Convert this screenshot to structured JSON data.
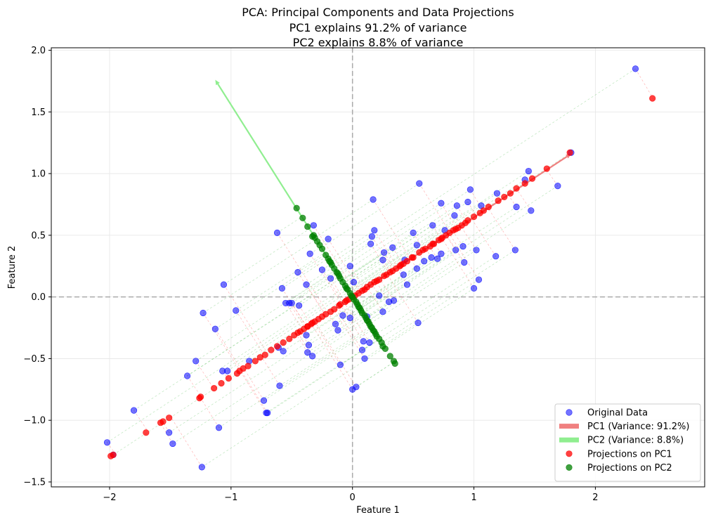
{
  "chart_data": {
    "type": "scatter",
    "title": [
      "PCA: Principal Components and Data Projections",
      "PC1 explains 91.2% of variance",
      "PC2 explains 8.8% of variance"
    ],
    "xlabel": "Feature 1",
    "ylabel": "Feature 2",
    "xlim": [
      -2.48,
      2.9
    ],
    "ylim": [
      -1.54,
      2.02
    ],
    "xticks": [
      -2,
      -1,
      0,
      1,
      2
    ],
    "yticks": [
      -1.5,
      -1.0,
      -0.5,
      0.0,
      0.5,
      1.0,
      1.5,
      2.0
    ],
    "xtick_labels": [
      "−2",
      "−1",
      "0",
      "1",
      "2"
    ],
    "ytick_labels": [
      "−1.5",
      "−1.0",
      "−0.5",
      "0.0",
      "0.5",
      "1.0",
      "1.5",
      "2.0"
    ],
    "grid": true,
    "legend_position": "lower-right",
    "pc1_direction": [
      0.84,
      0.54
    ],
    "pc2_direction": [
      -0.54,
      0.84
    ],
    "pc1_arrow": {
      "from": [
        0,
        0
      ],
      "to": [
        1.8,
        1.16
      ]
    },
    "pc2_arrow": {
      "from": [
        0,
        0
      ],
      "to": [
        -1.13,
        1.76
      ]
    },
    "series": [
      {
        "name": "Original Data",
        "color": "#0000ff",
        "x": [
          2.33,
          1.8,
          1.69,
          1.47,
          1.45,
          1.42,
          1.35,
          1.34,
          1.19,
          1.18,
          1.04,
          1.0,
          0.97,
          0.95,
          0.92,
          0.86,
          0.84,
          0.76,
          0.73,
          0.73,
          0.7,
          0.66,
          0.55,
          0.53,
          0.53,
          0.5,
          0.45,
          0.43,
          0.42,
          0.33,
          0.26,
          0.25,
          0.17,
          0.16,
          0.15,
          0.14,
          0.1,
          0.09,
          0.08,
          0.03,
          -0.02,
          0.0,
          -0.08,
          -0.1,
          -0.14,
          -0.25,
          -0.33,
          -0.35,
          -0.36,
          -0.37,
          -0.38,
          -0.44,
          -0.5,
          -0.52,
          -0.55,
          -0.57,
          -0.6,
          -0.61,
          -0.62,
          -0.7,
          -0.71,
          -0.73,
          -0.85,
          -0.96,
          -1.03,
          -1.06,
          -1.07,
          -1.1,
          -1.13,
          -1.23,
          -1.24,
          -1.29,
          -1.36,
          -1.48,
          -1.51,
          -1.8,
          -1.97,
          -2.02,
          0.54,
          0.22,
          0.3,
          0.59,
          0.65,
          0.91,
          1.06,
          1.02,
          0.85,
          -0.12,
          0.34,
          -0.02,
          -0.2,
          -0.45,
          -0.32,
          0.01,
          0.18,
          -0.58,
          -0.38,
          -0.18,
          0.25,
          0.12
        ],
        "y": [
          1.85,
          1.17,
          0.9,
          0.7,
          1.02,
          0.95,
          0.73,
          0.38,
          0.84,
          0.33,
          0.14,
          0.07,
          0.87,
          0.77,
          0.28,
          0.74,
          0.66,
          0.54,
          0.76,
          0.35,
          0.31,
          0.58,
          0.92,
          0.42,
          0.23,
          0.52,
          0.1,
          0.3,
          0.18,
          0.4,
          0.36,
          -0.12,
          0.79,
          0.49,
          0.43,
          -0.37,
          -0.5,
          -0.36,
          -0.43,
          -0.73,
          0.25,
          -0.75,
          -0.15,
          -0.55,
          -0.22,
          0.22,
          -0.48,
          0.35,
          -0.39,
          -0.45,
          0.1,
          -0.07,
          -0.05,
          -0.05,
          -0.05,
          -0.44,
          -0.72,
          -0.41,
          0.52,
          -0.94,
          -0.94,
          -0.84,
          -0.52,
          -0.11,
          -0.6,
          0.1,
          -0.6,
          -1.06,
          -0.26,
          -0.13,
          -1.38,
          -0.52,
          -0.64,
          -1.19,
          -1.1,
          -0.92,
          -1.28,
          -1.18,
          -0.21,
          0.01,
          -0.04,
          0.29,
          0.32,
          0.41,
          0.74,
          0.38,
          0.38,
          -0.27,
          -0.03,
          -0.17,
          0.47,
          0.2,
          0.58,
          0.12,
          0.54,
          0.07,
          -0.31,
          0.15,
          0.3,
          -0.16
        ]
      },
      {
        "name": "Projections on PC1",
        "color": "#ff0000",
        "x": [
          2.47,
          1.79,
          1.6,
          1.48,
          1.42,
          1.35,
          1.3,
          1.2,
          1.12,
          1.05,
          1.0,
          0.95,
          0.9,
          0.87,
          0.85,
          0.8,
          0.77,
          0.74,
          0.71,
          0.67,
          0.64,
          0.6,
          0.58,
          0.55,
          0.5,
          0.45,
          0.4,
          0.36,
          0.33,
          0.28,
          0.22,
          0.2,
          0.15,
          0.12,
          0.08,
          0.05,
          0.02,
          0.0,
          -0.03,
          -0.06,
          -0.1,
          -0.15,
          -0.18,
          -0.22,
          -0.25,
          -0.28,
          -0.31,
          -0.34,
          -0.37,
          -0.4,
          -0.43,
          -0.45,
          -0.48,
          -0.52,
          -0.57,
          -0.62,
          -0.67,
          -0.72,
          -0.76,
          -0.86,
          -0.9,
          -0.93,
          -1.02,
          -1.08,
          -1.14,
          -1.25,
          -1.26,
          -1.51,
          -1.56,
          -1.58,
          -1.7,
          -1.97,
          -1.99,
          0.26,
          0.39,
          0.49,
          0.66,
          0.73,
          0.83,
          0.93,
          1.08,
          1.25,
          -0.33,
          -0.05,
          0.1,
          0.18,
          0.31,
          0.42,
          -0.11,
          -0.37,
          -0.8,
          -0.95
        ],
        "y": [
          1.61,
          1.17,
          1.04,
          0.96,
          0.92,
          0.88,
          0.84,
          0.78,
          0.73,
          0.68,
          0.65,
          0.62,
          0.58,
          0.56,
          0.55,
          0.52,
          0.5,
          0.48,
          0.46,
          0.43,
          0.41,
          0.39,
          0.38,
          0.36,
          0.32,
          0.29,
          0.26,
          0.23,
          0.21,
          0.18,
          0.14,
          0.13,
          0.1,
          0.08,
          0.05,
          0.03,
          0.01,
          0.0,
          -0.02,
          -0.04,
          -0.06,
          -0.1,
          -0.12,
          -0.14,
          -0.16,
          -0.18,
          -0.2,
          -0.22,
          -0.24,
          -0.26,
          -0.28,
          -0.29,
          -0.31,
          -0.34,
          -0.37,
          -0.4,
          -0.43,
          -0.47,
          -0.49,
          -0.56,
          -0.58,
          -0.6,
          -0.66,
          -0.7,
          -0.74,
          -0.81,
          -0.82,
          -0.98,
          -1.01,
          -1.02,
          -1.1,
          -1.28,
          -1.29,
          0.17,
          0.25,
          0.32,
          0.43,
          0.47,
          0.54,
          0.6,
          0.7,
          0.81,
          -0.21,
          -0.03,
          0.06,
          0.12,
          0.2,
          0.27,
          -0.07,
          -0.24,
          -0.52,
          -0.62
        ]
      },
      {
        "name": "Projections on PC2",
        "color": "#008000",
        "x": [
          -0.46,
          -0.41,
          -0.37,
          -0.32,
          -0.31,
          -0.27,
          -0.25,
          -0.22,
          -0.2,
          -0.18,
          -0.17,
          -0.15,
          -0.13,
          -0.11,
          -0.1,
          -0.08,
          -0.06,
          -0.05,
          -0.04,
          -0.02,
          -0.01,
          0.0,
          0.01,
          0.03,
          0.04,
          0.06,
          0.07,
          0.08,
          0.1,
          0.11,
          0.13,
          0.14,
          0.16,
          0.17,
          0.19,
          0.2,
          0.22,
          0.24,
          0.25,
          0.31,
          0.34,
          0.35,
          -0.29,
          -0.19,
          -0.12,
          0.12,
          0.18,
          0.27,
          -0.33,
          0.05,
          0.15
        ],
        "y": [
          0.72,
          0.64,
          0.57,
          0.5,
          0.48,
          0.42,
          0.39,
          0.34,
          0.31,
          0.28,
          0.26,
          0.23,
          0.2,
          0.17,
          0.15,
          0.12,
          0.09,
          0.07,
          0.06,
          0.03,
          0.01,
          0.0,
          -0.02,
          -0.04,
          -0.06,
          -0.09,
          -0.11,
          -0.13,
          -0.15,
          -0.17,
          -0.2,
          -0.22,
          -0.25,
          -0.27,
          -0.3,
          -0.32,
          -0.34,
          -0.37,
          -0.4,
          -0.48,
          -0.52,
          -0.54,
          0.45,
          0.29,
          0.19,
          -0.19,
          -0.28,
          -0.42,
          0.49,
          -0.08,
          -0.24
        ]
      }
    ],
    "lines": [
      {
        "name": "PC1 (Variance: 91.2%)",
        "color": "#f08080"
      },
      {
        "name": "PC2 (Variance: 8.8%)",
        "color": "#90ee90"
      }
    ],
    "legend": [
      {
        "label": "Original Data",
        "kind": "marker",
        "color": "#0000ff",
        "alpha": 0.55
      },
      {
        "label": "PC1 (Variance: 91.2%)",
        "kind": "line",
        "color": "#f08080"
      },
      {
        "label": "PC2 (Variance: 8.8%)",
        "kind": "line",
        "color": "#90ee90"
      },
      {
        "label": "Projections on PC1",
        "kind": "marker",
        "color": "#ff0000",
        "alpha": 0.75
      },
      {
        "label": "Projections on PC2",
        "kind": "marker",
        "color": "#008000",
        "alpha": 0.75
      }
    ]
  }
}
